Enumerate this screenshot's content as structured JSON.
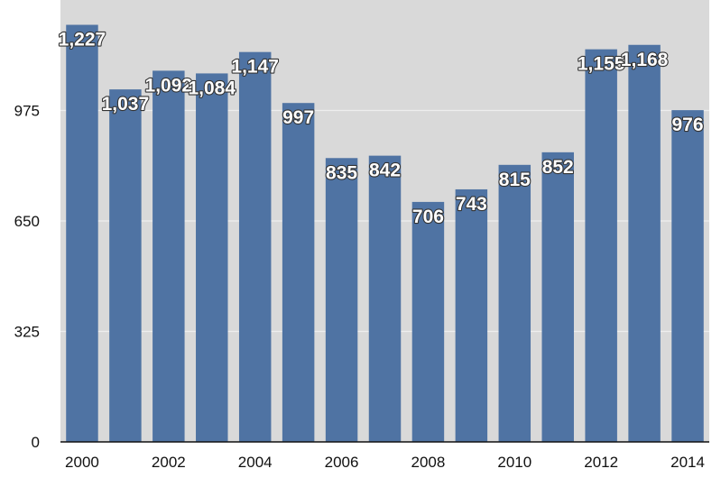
{
  "chart_data": {
    "type": "bar",
    "categories": [
      "2000",
      "2001",
      "2002",
      "2003",
      "2004",
      "2005",
      "2006",
      "2007",
      "2008",
      "2009",
      "2010",
      "2011",
      "2012",
      "2013",
      "2014"
    ],
    "values": [
      1227,
      1037,
      1092,
      1084,
      1147,
      997,
      835,
      842,
      706,
      743,
      815,
      852,
      1155,
      1168,
      976
    ],
    "data_labels": [
      "1,227",
      "1,037",
      "1,092",
      "1,084",
      "1,147",
      "997",
      "835",
      "842",
      "706",
      "743",
      "815",
      "852",
      "1,155",
      "1,168",
      "976"
    ],
    "x_tick_labels": [
      "2000",
      "",
      "2002",
      "",
      "2004",
      "",
      "2006",
      "",
      "2008",
      "",
      "2010",
      "",
      "2012",
      "",
      "2014"
    ],
    "y_ticks": [
      0,
      325,
      650,
      975
    ],
    "y_tick_labels": [
      "0",
      "325",
      "650",
      "975"
    ],
    "ylim": [
      0,
      1300
    ],
    "title": "",
    "xlabel": "",
    "ylabel": "",
    "grid": true,
    "legend": "none",
    "colors": {
      "bar": "#4f73a3",
      "plot_background": "#d9d9d9",
      "gridline": "#eeeeee",
      "label_fill": "#ffffff",
      "label_outline": "#333333"
    }
  }
}
